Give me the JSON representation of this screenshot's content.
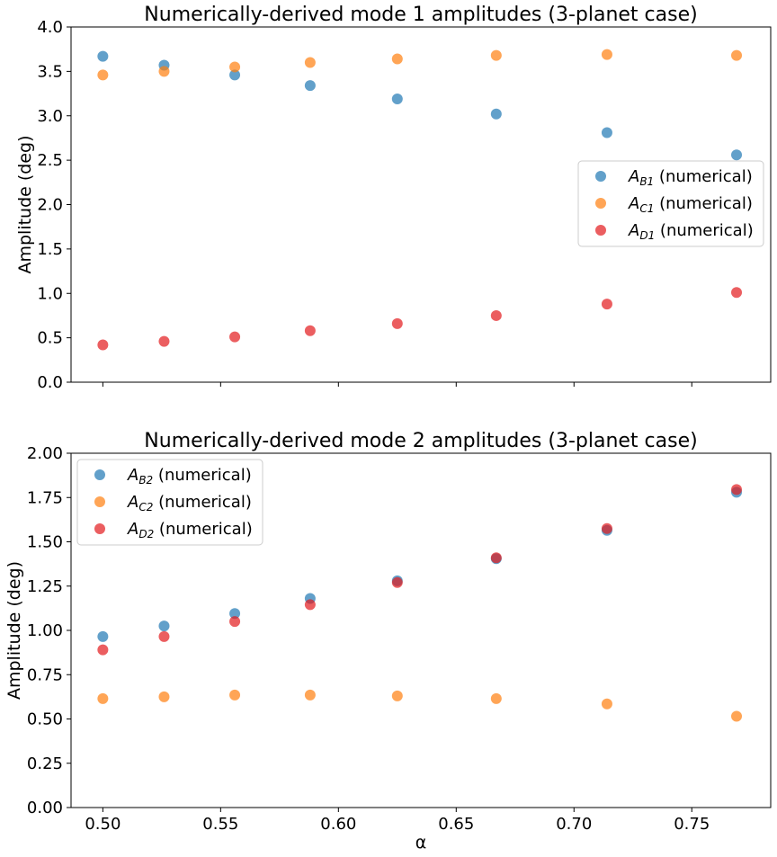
{
  "colors": {
    "B": "#1f77b4",
    "C": "#ff7f0e",
    "D": "#e31a1c"
  },
  "chart_data": [
    {
      "type": "scatter",
      "title": "Numerically-derived mode 1 amplitudes (3-planet case)",
      "xlabel": "",
      "ylabel": "Amplitude (deg)",
      "xlim": [
        0.4865,
        0.7835
      ],
      "ylim": [
        0.0,
        4.0
      ],
      "yticks": [
        "0.0",
        "0.5",
        "1.0",
        "1.5",
        "2.0",
        "2.5",
        "3.0",
        "3.5",
        "4.0"
      ],
      "ytick_values": [
        0.0,
        0.5,
        1.0,
        1.5,
        2.0,
        2.5,
        3.0,
        3.5,
        4.0
      ],
      "xticks": [
        0.5,
        0.55,
        0.6,
        0.65,
        0.7,
        0.75
      ],
      "show_xtick_labels": false,
      "grid": false,
      "legend": "center-right",
      "x": [
        0.5,
        0.526,
        0.556,
        0.588,
        0.625,
        0.667,
        0.714,
        0.769
      ],
      "series": [
        {
          "key": "B",
          "sym": "A",
          "sub": "B1",
          "suffix": " (numerical)",
          "values": [
            3.67,
            3.57,
            3.46,
            3.34,
            3.19,
            3.02,
            2.81,
            2.56
          ]
        },
        {
          "key": "C",
          "sym": "A",
          "sub": "C1",
          "suffix": " (numerical)",
          "values": [
            3.46,
            3.5,
            3.55,
            3.6,
            3.64,
            3.68,
            3.69,
            3.68
          ]
        },
        {
          "key": "D",
          "sym": "A",
          "sub": "D1",
          "suffix": " (numerical)",
          "values": [
            0.42,
            0.46,
            0.51,
            0.58,
            0.66,
            0.75,
            0.88,
            1.01
          ]
        }
      ]
    },
    {
      "type": "scatter",
      "title": "Numerically-derived mode 2 amplitudes (3-planet case)",
      "xlabel": "α",
      "ylabel": "Amplitude (deg)",
      "xlim": [
        0.4865,
        0.7835
      ],
      "ylim": [
        0.0,
        2.0
      ],
      "yticks": [
        "0.00",
        "0.25",
        "0.50",
        "0.75",
        "1.00",
        "1.25",
        "1.50",
        "1.75",
        "2.00"
      ],
      "ytick_values": [
        0.0,
        0.25,
        0.5,
        0.75,
        1.0,
        1.25,
        1.5,
        1.75,
        2.0
      ],
      "xticks": [
        0.5,
        0.55,
        0.6,
        0.65,
        0.7,
        0.75
      ],
      "xtick_labels": [
        "0.50",
        "0.55",
        "0.60",
        "0.65",
        "0.70",
        "0.75"
      ],
      "show_xtick_labels": true,
      "grid": false,
      "legend": "upper-left",
      "x": [
        0.5,
        0.526,
        0.556,
        0.588,
        0.625,
        0.667,
        0.714,
        0.769
      ],
      "series": [
        {
          "key": "B",
          "sym": "A",
          "sub": "B2",
          "suffix": " (numerical)",
          "values": [
            0.965,
            1.025,
            1.095,
            1.18,
            1.28,
            1.405,
            1.565,
            1.78
          ]
        },
        {
          "key": "C",
          "sym": "A",
          "sub": "C2",
          "suffix": " (numerical)",
          "values": [
            0.615,
            0.625,
            0.635,
            0.635,
            0.63,
            0.615,
            0.585,
            0.515
          ]
        },
        {
          "key": "D",
          "sym": "A",
          "sub": "D2",
          "suffix": " (numerical)",
          "values": [
            0.89,
            0.965,
            1.05,
            1.145,
            1.27,
            1.41,
            1.575,
            1.795
          ]
        }
      ]
    }
  ]
}
